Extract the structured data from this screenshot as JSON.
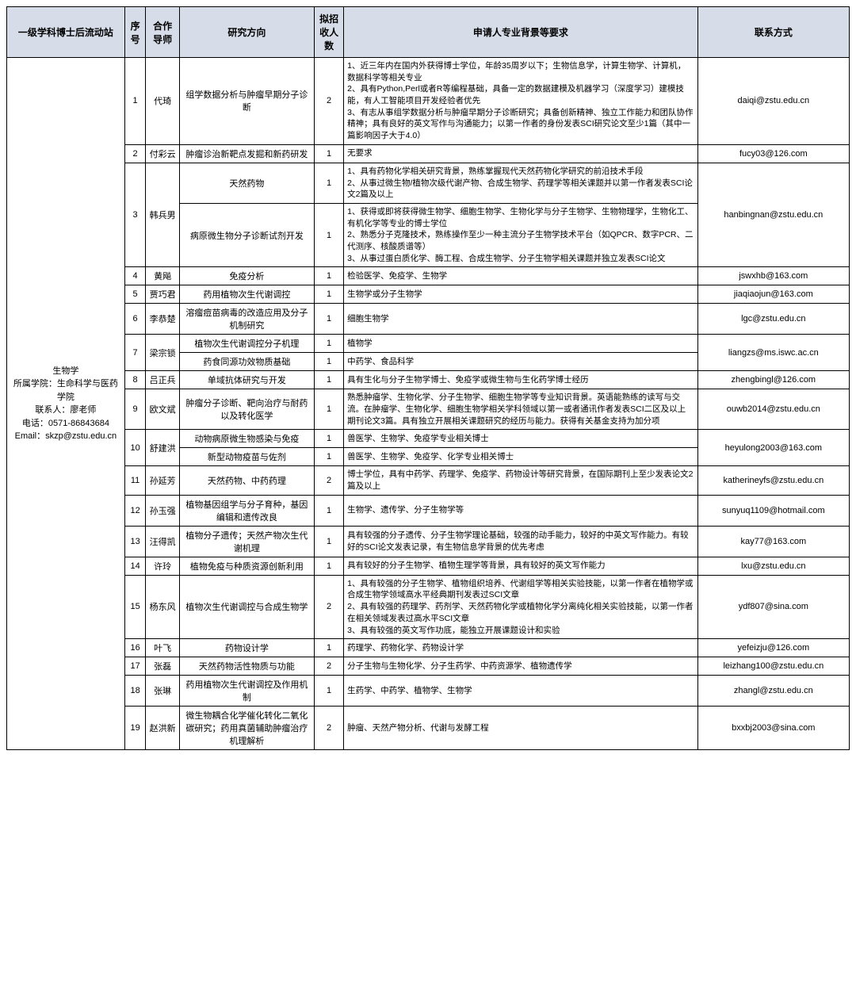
{
  "headers": {
    "station": "一级学科博士后流动站",
    "seq": "序号",
    "advisor": "合作导师",
    "direction": "研究方向",
    "num": "拟招收人数",
    "req": "申请人专业背景等要求",
    "contact": "联系方式"
  },
  "station_info": "生物学\n所属学院：生命科学与医药学院\n联系人：廖老师\n电话：0571-86843684\nEmail：skzp@zstu.edu.cn",
  "rows": [
    {
      "seq": "1",
      "advisor": "代琦",
      "direction": "组学数据分析与肿瘤早期分子诊断",
      "num": "2",
      "req": "1、近三年内在国内外获得博士学位，年龄35周岁以下；生物信息学，计算生物学、计算机，数据科学等相关专业\n2、具有Python,Perl或者R等编程基础，具备一定的数据建模及机器学习（深度学习）建模技能，有人工智能项目开发经验者优先\n3、有志从事组学数据分析与肿瘤早期分子诊断研究；具备创新精神、独立工作能力和团队协作精神；具有良好的英文写作与沟通能力；以第一作者的身份发表SCI研究论文至少1篇（其中一篇影响因子大于4.0）",
      "contact": "daiqi@zstu.edu.cn"
    },
    {
      "seq": "2",
      "advisor": "付彩云",
      "direction": "肿瘤诊治新靶点发掘和新药研发",
      "num": "1",
      "req": "无要求",
      "contact": "fucy03@126.com"
    },
    {
      "seq": "3",
      "advisor": "韩兵男",
      "sub": [
        {
          "direction": "天然药物",
          "num": "1",
          "req": "1、具有药物化学相关研究背景，熟练掌握现代天然药物化学研究的前沿技术手段\n2、从事过微生物/植物次级代谢产物、合成生物学、药理学等相关课题并以第一作者发表SCI论文2篇及以上"
        },
        {
          "direction": "病原微生物分子诊断试剂开发",
          "num": "1",
          "req": "1、获得或即将获得微生物学、细胞生物学、生物化学与分子生物学、生物物理学，生物化工、有机化学等专业的博士学位\n2、熟悉分子克隆技术，熟练操作至少一种主流分子生物学技术平台（如QPCR、数字PCR、二代测序、核酸质谱等）\n3、从事过蛋白质化学、酶工程、合成生物学、分子生物学相关课题并独立发表SCI论文"
        }
      ],
      "contact": "hanbingnan@zstu.edu.cn"
    },
    {
      "seq": "4",
      "advisor": "黄飚",
      "direction": "免疫分析",
      "num": "1",
      "req": "检验医学、免疫学、生物学",
      "contact": "jswxhb@163.com"
    },
    {
      "seq": "5",
      "advisor": "贾巧君",
      "direction": "药用植物次生代谢调控",
      "num": "1",
      "req": "生物学或分子生物学",
      "contact": "jiaqiaojun@163.com"
    },
    {
      "seq": "6",
      "advisor": "李恭楚",
      "direction": "溶瘤痘苗病毒的改造应用及分子机制研究",
      "num": "1",
      "req": "细胞生物学",
      "contact": "lgc@zstu.edu.cn"
    },
    {
      "seq": "7",
      "advisor": "梁宗锁",
      "sub": [
        {
          "direction": "植物次生代谢调控分子机理",
          "num": "1",
          "req": "植物学"
        },
        {
          "direction": "药食同源功效物质基础",
          "num": "1",
          "req": "中药学、食品科学"
        }
      ],
      "contact": "liangzs@ms.iswc.ac.cn"
    },
    {
      "seq": "8",
      "advisor": "吕正兵",
      "direction": "单域抗体研究与开发",
      "num": "1",
      "req": "具有生化与分子生物学博士、免疫学或微生物与生化药学博士经历",
      "contact": "zhengbingl@126.com"
    },
    {
      "seq": "9",
      "advisor": "欧文斌",
      "direction": "肿瘤分子诊断、靶向治疗与耐药以及转化医学",
      "num": "1",
      "req": "熟悉肿瘤学、生物化学、分子生物学、细胞生物学等专业知识背景。英语能熟练的读写与交流。在肿瘤学、生物化学、细胞生物学相关学科领域以第一或者通讯作者发表SCI二区及以上期刊论文3篇。具有独立开展相关课题研究的经历与能力。获得有关基金支持为加分项",
      "contact": "ouwb2014@zstu.edu.cn"
    },
    {
      "seq": "10",
      "advisor": "舒建洪",
      "sub": [
        {
          "direction": "动物病原微生物感染与免疫",
          "num": "1",
          "req": "兽医学、生物学、免疫学专业相关博士"
        },
        {
          "direction": "新型动物疫苗与佐剂",
          "num": "1",
          "req": "兽医学、生物学、免疫学、化学专业相关博士"
        }
      ],
      "contact": "heyulong2003@163.com"
    },
    {
      "seq": "11",
      "advisor": "孙延芳",
      "direction": "天然药物、中药药理",
      "num": "2",
      "req": "博士学位，具有中药学、药理学、免疫学、药物设计等研究背景，在国际期刊上至少发表论文2篇及以上",
      "contact": "katherineyfs@zstu.edu.cn"
    },
    {
      "seq": "12",
      "advisor": "孙玉强",
      "direction": "植物基因组学与分子育种，基因编辑和遗传改良",
      "num": "1",
      "req": "生物学、遗传学、分子生物学等",
      "contact": "sunyuq1109@hotmail.com"
    },
    {
      "seq": "13",
      "advisor": "汪得凯",
      "direction": "植物分子遗传；天然产物次生代谢机理",
      "num": "1",
      "req": "具有较强的分子遗传、分子生物学理论基础，较强的动手能力，较好的中英文写作能力。有较好的SCI论文发表记录，有生物信息学背景的优先考虑",
      "contact": "kay77@163.com"
    },
    {
      "seq": "14",
      "advisor": "许玲",
      "direction": "植物免疫与种质资源创新利用",
      "num": "1",
      "req": "具有较好的分子生物学、植物生理学等背景，具有较好的英文写作能力",
      "contact": "lxu@zstu.edu.cn"
    },
    {
      "seq": "15",
      "advisor": "杨东风",
      "direction": "植物次生代谢调控与合成生物学",
      "num": "2",
      "req": "1、具有较强的分子生物学、植物组织培养、代谢组学等相关实验技能，以第一作者在植物学或合成生物学领域高水平经典期刊发表过SCI文章\n2、具有较强的药理学、药剂学、天然药物化学或植物化学分离纯化相关实验技能，以第一作者在相关领域发表过高水平SCI文章\n3、具有较强的英文写作功底，能独立开展课题设计和实验",
      "contact": "ydf807@sina.com"
    },
    {
      "seq": "16",
      "advisor": "叶飞",
      "direction": "药物设计学",
      "num": "1",
      "req": "药理学、药物化学、药物设计学",
      "contact": "yefeizju@126.com"
    },
    {
      "seq": "17",
      "advisor": "张磊",
      "direction": "天然药物活性物质与功能",
      "num": "2",
      "req": "分子生物与生物化学、分子生药学、中药资源学、植物遗传学",
      "contact": "leizhang100@zstu.edu.cn"
    },
    {
      "seq": "18",
      "advisor": "张琳",
      "direction": "药用植物次生代谢调控及作用机制",
      "num": "1",
      "req": "生药学、中药学、植物学、生物学",
      "contact": "zhangl@zstu.edu.cn"
    },
    {
      "seq": "19",
      "advisor": "赵洪新",
      "direction": "微生物耦合化学催化转化二氧化碳研究；药用真菌辅助肿瘤治疗机理解析",
      "num": "2",
      "req": "肿瘤、天然产物分析、代谢与发酵工程",
      "contact": "bxxbj2003@sina.com"
    }
  ]
}
